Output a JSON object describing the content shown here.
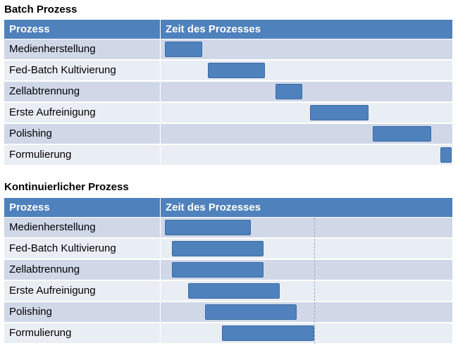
{
  "sections": [
    {
      "title": "Batch Prozess",
      "header": {
        "col1": "Prozess",
        "col2": "Zeit des Prozesses"
      },
      "rows": [
        {
          "label": "Medienherstellung",
          "start": 0.0,
          "end": 0.13
        },
        {
          "label": "Fed-Batch Kultivierung",
          "start": 0.15,
          "end": 0.35
        },
        {
          "label": "Zellabtrennung",
          "start": 0.385,
          "end": 0.48
        },
        {
          "label": "Erste Aufreinigung",
          "start": 0.505,
          "end": 0.71
        },
        {
          "label": "Polishing",
          "start": 0.725,
          "end": 0.93
        },
        {
          "label": "Formulierung",
          "start": 0.96,
          "end": 1.0
        }
      ]
    },
    {
      "title": "Kontinuierlicher Prozess",
      "header": {
        "col1": "Prozess",
        "col2": "Zeit des Prozesses"
      },
      "marker": 0.52,
      "rows": [
        {
          "label": "Medienherstellung",
          "start": 0.0,
          "end": 0.3
        },
        {
          "label": "Fed-Batch Kultivierung",
          "start": 0.025,
          "end": 0.345
        },
        {
          "label": "Zellabtrennung",
          "start": 0.025,
          "end": 0.345
        },
        {
          "label": "Erste Aufreinigung",
          "start": 0.08,
          "end": 0.4
        },
        {
          "label": "Polishing",
          "start": 0.14,
          "end": 0.46
        },
        {
          "label": "Formulierung",
          "start": 0.2,
          "end": 0.52
        }
      ]
    }
  ],
  "colors": {
    "header": "#4f81bd",
    "bar": "#4f81bd",
    "row_odd": "#d0d8e8",
    "row_even": "#e9edf4"
  }
}
